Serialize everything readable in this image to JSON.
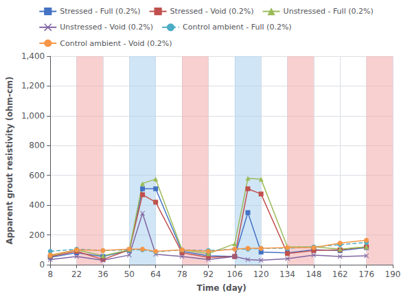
{
  "chart_data": {
    "type": "line",
    "xlabel": "Time (day)",
    "ylabel": "Apparent grout resistivity (ohm-cm)",
    "xlim": [
      8,
      190
    ],
    "ylim": [
      0,
      1400
    ],
    "xticks": [
      8,
      22,
      36,
      50,
      64,
      78,
      92,
      106,
      120,
      134,
      148,
      162,
      176,
      190
    ],
    "yticks": [
      0,
      200,
      400,
      600,
      800,
      1000,
      1200,
      1400
    ],
    "grid": true,
    "legend": "top",
    "bands": [
      {
        "range": [
          22,
          36
        ],
        "color": "#F2AAAA"
      },
      {
        "range": [
          78,
          92
        ],
        "color": "#F2AAAA"
      },
      {
        "range": [
          134,
          148
        ],
        "color": "#F2AAAA"
      },
      {
        "range": [
          176,
          190
        ],
        "color": "#F2AAAA"
      },
      {
        "range": [
          50,
          64
        ],
        "color": "#AACFEE"
      },
      {
        "range": [
          106,
          120
        ],
        "color": "#AACFEE"
      }
    ],
    "x": [
      8,
      22,
      36,
      50,
      57,
      64,
      78,
      92,
      106,
      113,
      120,
      134,
      148,
      162,
      176
    ],
    "series": [
      {
        "name": "Stressed - Full (0.2%)",
        "color": "#4472C4",
        "marker": "square",
        "line_style": "solid",
        "values": [
          50,
          80,
          55,
          95,
          510,
          510,
          90,
          60,
          55,
          350,
          85,
          80,
          100,
          95,
          115
        ]
      },
      {
        "name": "Stressed - Void (0.2%)",
        "color": "#C0504D",
        "marker": "square",
        "line_style": "solid",
        "values": [
          55,
          90,
          35,
          100,
          470,
          420,
          80,
          50,
          55,
          510,
          475,
          75,
          95,
          100,
          120
        ]
      },
      {
        "name": "Unstressed - Full (0.2%)",
        "color": "#9BBB59",
        "marker": "triangle",
        "line_style": "solid",
        "values": [
          60,
          100,
          60,
          100,
          545,
          575,
          100,
          75,
          140,
          580,
          575,
          120,
          120,
          105,
          120
        ]
      },
      {
        "name": "Unstressed - Void (0.2%)",
        "color": "#8064A2",
        "marker": "x",
        "line_style": "solid",
        "values": [
          35,
          55,
          30,
          65,
          345,
          70,
          55,
          35,
          55,
          35,
          30,
          40,
          65,
          55,
          60
        ]
      },
      {
        "name": "Control ambient - Full (0.2%)",
        "color": "#4BACC6",
        "marker": "circle",
        "line_style": "dashed",
        "values": [
          90,
          105,
          95,
          100,
          100,
          85,
          100,
          95,
          105,
          105,
          110,
          110,
          120,
          135,
          150
        ]
      },
      {
        "name": "Control ambient - Void (0.2%)",
        "color": "#F79646",
        "marker": "circle",
        "line_style": "solid",
        "values": [
          65,
          100,
          95,
          105,
          105,
          90,
          100,
          90,
          105,
          110,
          110,
          115,
          115,
          145,
          165
        ]
      }
    ]
  }
}
